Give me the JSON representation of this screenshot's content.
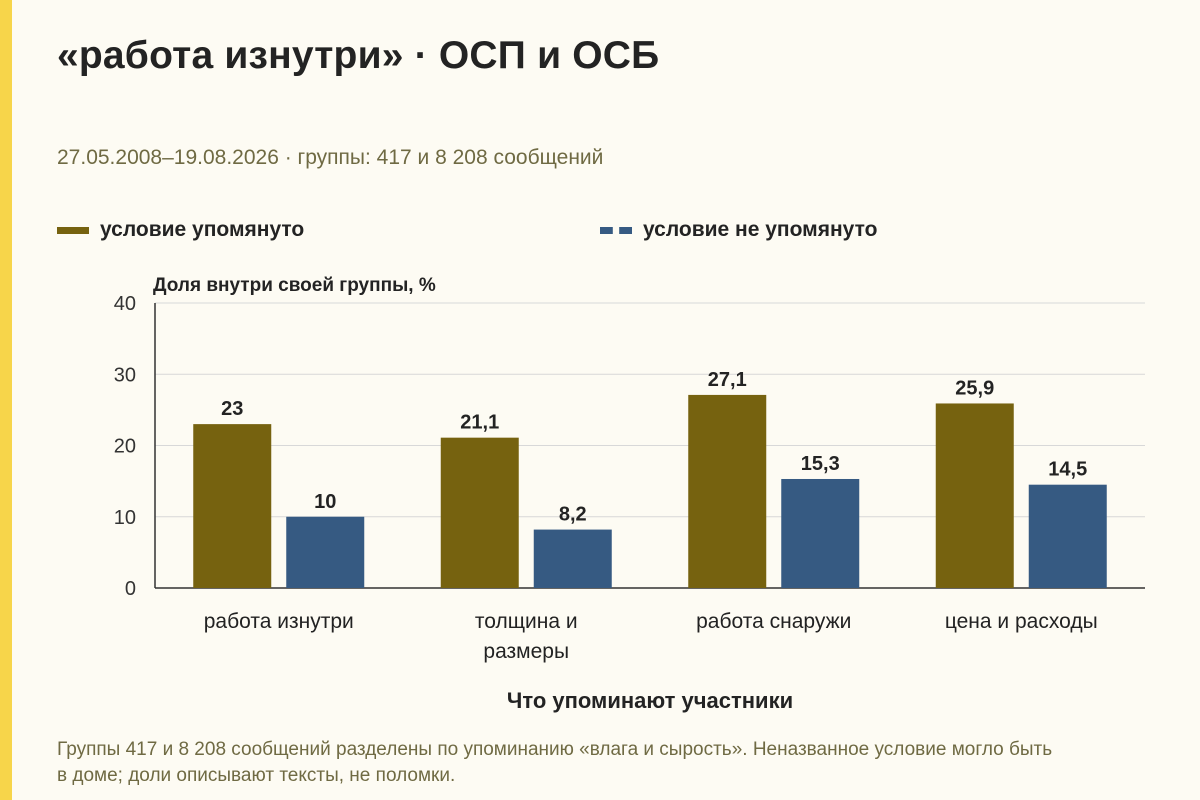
{
  "title": "«работа изнутри» · ОСП и ОСБ",
  "subtitle": "27.05.2008–19.08.2026 · группы: 417 и 8 208 сообщений",
  "legend": [
    {
      "label": "условие упомянуто",
      "color": "#76620f"
    },
    {
      "label": "условие не упомянуто",
      "color": "#365a82"
    }
  ],
  "footer": "Группы 417 и 8 208 сообщений разделены по упоминанию «влага и сырость». Неназванное условие могло быть в доме; доли описывают тексты, не поломки.",
  "chart_data": {
    "type": "bar",
    "ylabel": "Доля внутри своей группы, %",
    "xlabel": "Что упоминают участники",
    "ylim": [
      0,
      40
    ],
    "yticks": [
      0,
      10,
      20,
      30,
      40
    ],
    "grid": true,
    "categories": [
      [
        "работа изнутри"
      ],
      [
        "толщина и",
        "размеры"
      ],
      [
        "работа снаружи"
      ],
      [
        "цена и расходы"
      ]
    ],
    "series": [
      {
        "name": "условие упомянуто",
        "color": "#76620f",
        "values": [
          23,
          21.1,
          27.1,
          25.9
        ],
        "labels": [
          "23",
          "21,1",
          "27,1",
          "25,9"
        ]
      },
      {
        "name": "условие не упомянуто",
        "color": "#365a82",
        "values": [
          10,
          8.2,
          15.3,
          14.5
        ],
        "labels": [
          "10",
          "8,2",
          "15,3",
          "14,5"
        ]
      }
    ]
  }
}
